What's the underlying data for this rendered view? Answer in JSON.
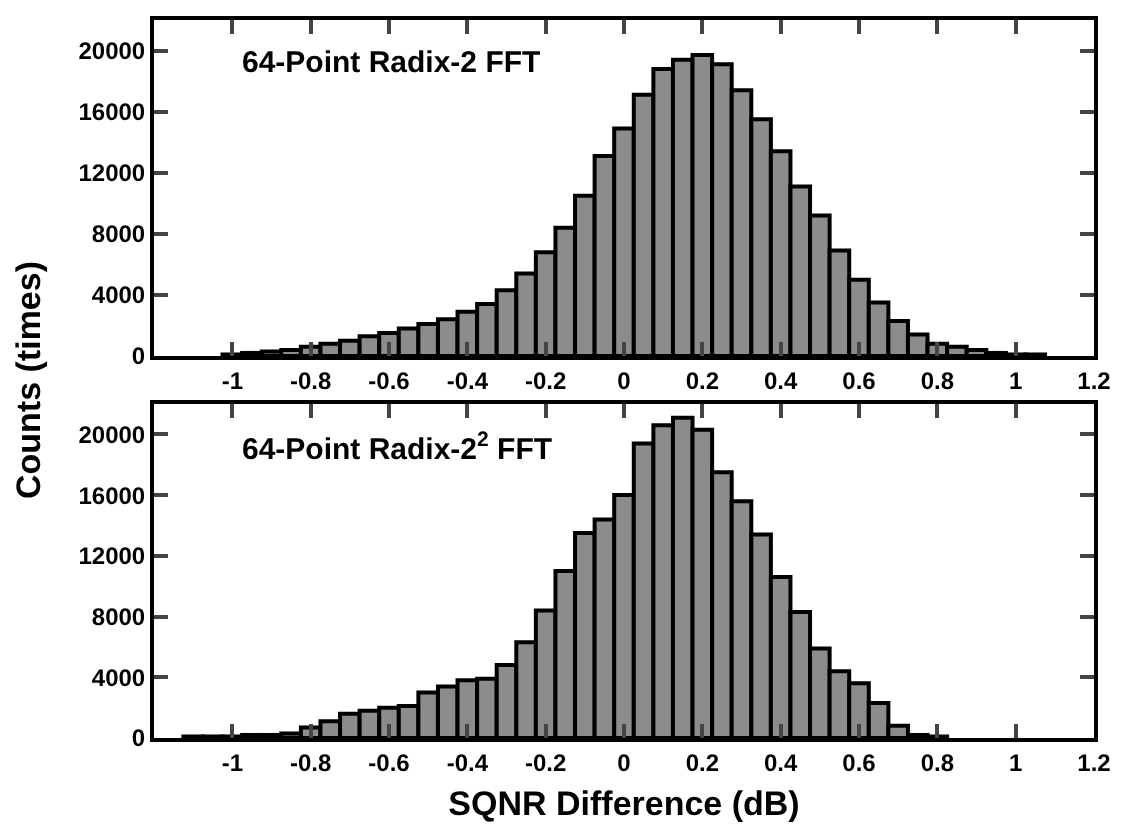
{
  "chart_data": [
    {
      "type": "histogram",
      "ylabel": "Counts (times)",
      "annotations": [
        "64-Point Radix-2 FFT"
      ],
      "color": "#8c8c8c",
      "bins": [
        -1.025,
        -0.975,
        -0.925,
        -0.875,
        -0.825,
        -0.775,
        -0.725,
        -0.675,
        -0.625,
        -0.575,
        -0.525,
        -0.475,
        -0.425,
        -0.375,
        -0.325,
        -0.275,
        -0.225,
        -0.175,
        -0.125,
        -0.075,
        -0.025,
        0.025,
        0.075,
        0.125,
        0.175,
        0.225,
        0.275,
        0.325,
        0.375,
        0.425,
        0.475,
        0.525,
        0.575,
        0.625,
        0.675,
        0.725,
        0.775,
        0.825,
        0.875,
        0.925,
        0.975,
        1.025,
        1.075
      ],
      "values": [
        100,
        200,
        300,
        400,
        600,
        800,
        1000,
        1300,
        1500,
        1800,
        2100,
        2400,
        2900,
        3400,
        4300,
        5400,
        6800,
        8400,
        10500,
        13100,
        14900,
        17100,
        18800,
        19400,
        19700,
        19100,
        17400,
        15500,
        13400,
        11100,
        9200,
        6900,
        5000,
        3500,
        2300,
        1400,
        800,
        600,
        400,
        200,
        100,
        100
      ],
      "xlim": [
        -1.2,
        1.2
      ],
      "xticks": [
        -1,
        -0.8,
        -0.6,
        -0.4,
        -0.2,
        0,
        0.2,
        0.4,
        0.6,
        0.8,
        1,
        1.2
      ],
      "ylim": [
        0,
        22000
      ],
      "yticks": [
        0,
        4000,
        8000,
        12000,
        16000,
        20000
      ],
      "grid": false,
      "legend": false
    },
    {
      "type": "histogram",
      "xlabel": "SQNR Difference (dB)",
      "annotations": [
        "64-Point Radix-2$^{2}$ FFT"
      ],
      "color": "#8c8c8c",
      "bins": [
        -1.125,
        -1.075,
        -1.025,
        -0.975,
        -0.925,
        -0.875,
        -0.825,
        -0.775,
        -0.725,
        -0.675,
        -0.625,
        -0.575,
        -0.525,
        -0.475,
        -0.425,
        -0.375,
        -0.325,
        -0.275,
        -0.225,
        -0.175,
        -0.125,
        -0.075,
        -0.025,
        0.025,
        0.075,
        0.125,
        0.175,
        0.225,
        0.275,
        0.325,
        0.375,
        0.425,
        0.475,
        0.525,
        0.575,
        0.625,
        0.675,
        0.725,
        0.775,
        0.825
      ],
      "values": [
        100,
        100,
        100,
        200,
        200,
        300,
        700,
        1100,
        1600,
        1800,
        2000,
        2100,
        3000,
        3400,
        3800,
        3900,
        4800,
        6300,
        8400,
        11000,
        13500,
        14400,
        16000,
        19400,
        20600,
        21100,
        20300,
        17500,
        15600,
        13400,
        10600,
        8300,
        5900,
        4400,
        3600,
        2300,
        800,
        200,
        100
      ],
      "xlim": [
        -1.2,
        1.2
      ],
      "xticks": [
        -1,
        -0.8,
        -0.6,
        -0.4,
        -0.2,
        0,
        0.2,
        0.4,
        0.6,
        0.8,
        1,
        1.2
      ],
      "ylim": [
        0,
        22000
      ],
      "yticks": [
        0,
        4000,
        8000,
        12000,
        16000,
        20000
      ],
      "grid": false,
      "legend": false
    }
  ]
}
